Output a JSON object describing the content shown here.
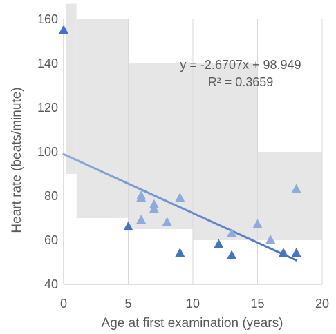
{
  "chart_data": {
    "type": "scatter",
    "xlabel": "Age at first examination (years)",
    "ylabel": "Heart rate (beats/minute)",
    "xlim": [
      0,
      20
    ],
    "ylim": [
      40,
      160
    ],
    "x_ticks": [
      0,
      5,
      10,
      15,
      20
    ],
    "y_ticks": [
      40,
      60,
      80,
      100,
      120,
      140,
      160
    ],
    "grid": "vertical",
    "reference_band": {
      "color": "#e6e6e6",
      "segments": [
        {
          "x_from": 0.2,
          "x_to": 1,
          "y_from": 90,
          "y_to": 167
        },
        {
          "x_from": 1,
          "x_to": 5,
          "y_from": 70,
          "y_to": 160
        },
        {
          "x_from": 5,
          "x_to": 10,
          "y_from": 65,
          "y_to": 140
        },
        {
          "x_from": 10,
          "x_to": 15,
          "y_from": 60,
          "y_to": 140
        },
        {
          "x_from": 15,
          "x_to": 20,
          "y_from": 60,
          "y_to": 100
        }
      ]
    },
    "series": [
      {
        "marker": "triangle",
        "points": [
          {
            "x": 0,
            "y": 155,
            "color": "#4472c4"
          },
          {
            "x": 5,
            "y": 66,
            "color": "#4472c4"
          },
          {
            "x": 6,
            "y": 80,
            "color": "#8faadc"
          },
          {
            "x": 6,
            "y": 79,
            "color": "#8faadc"
          },
          {
            "x": 6,
            "y": 69,
            "color": "#8faadc"
          },
          {
            "x": 7,
            "y": 76,
            "color": "#8faadc"
          },
          {
            "x": 7,
            "y": 74,
            "color": "#8faadc"
          },
          {
            "x": 8,
            "y": 68,
            "color": "#8faadc"
          },
          {
            "x": 9,
            "y": 79,
            "color": "#8faadc"
          },
          {
            "x": 9,
            "y": 54,
            "color": "#4472c4"
          },
          {
            "x": 12,
            "y": 58,
            "color": "#4472c4"
          },
          {
            "x": 13,
            "y": 63,
            "color": "#8faadc"
          },
          {
            "x": 13,
            "y": 53,
            "color": "#4472c4"
          },
          {
            "x": 15,
            "y": 67,
            "color": "#8faadc"
          },
          {
            "x": 16,
            "y": 60,
            "color": "#8faadc"
          },
          {
            "x": 17,
            "y": 54,
            "color": "#4472c4"
          },
          {
            "x": 18,
            "y": 83,
            "color": "#8faadc"
          },
          {
            "x": 18,
            "y": 54,
            "color": "#4472c4"
          }
        ]
      }
    ],
    "trendline": {
      "slope": -2.6707,
      "intercept": 98.949,
      "x_range": [
        0,
        18
      ],
      "colors": [
        "#8faadc",
        "#4472c4"
      ],
      "equation_text": "y = -2.6707x + 98.949",
      "r2_text": "R² = 0.3659"
    }
  }
}
